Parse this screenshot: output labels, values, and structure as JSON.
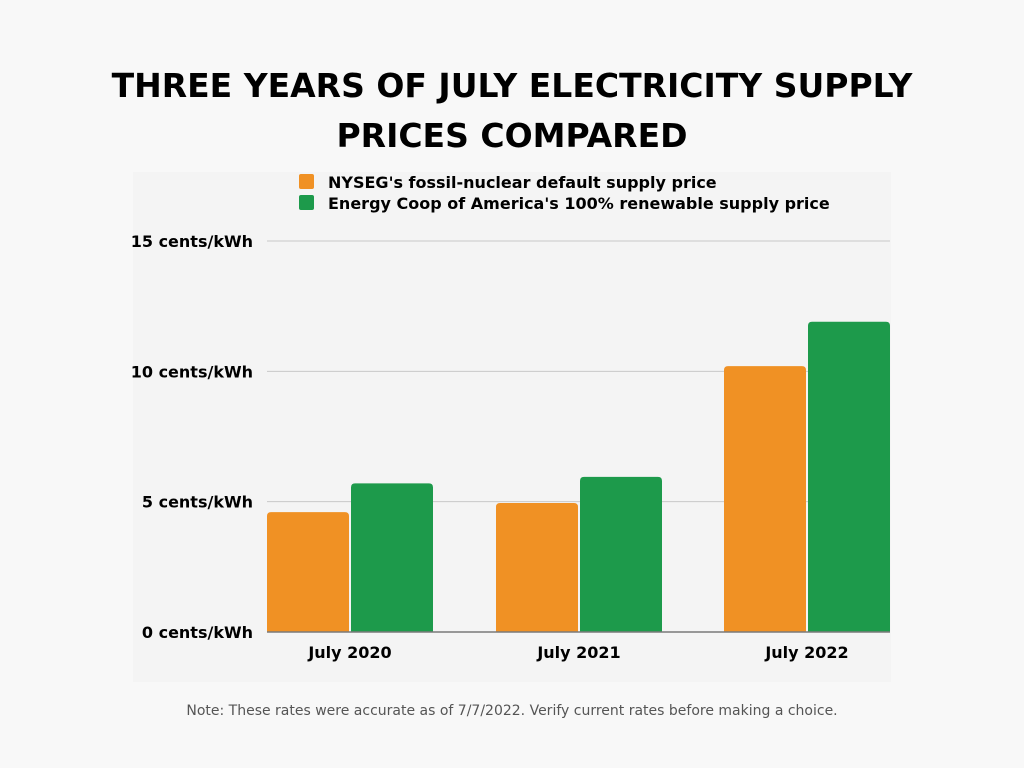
{
  "chart_data": {
    "type": "bar",
    "title": "THREE YEARS OF JULY ELECTRICITY SUPPLY PRICES COMPARED",
    "title_lines": [
      "THREE YEARS OF JULY ELECTRICITY SUPPLY",
      "PRICES COMPARED"
    ],
    "categories": [
      "July 2020",
      "July 2021",
      "July 2022"
    ],
    "series": [
      {
        "name": "NYSEG's fossil-nuclear default supply price",
        "color": "#f09124",
        "values": [
          4.6,
          4.95,
          10.2
        ]
      },
      {
        "name": "Energy Coop of America's 100% renewable supply price",
        "color": "#1d9a4b",
        "values": [
          5.7,
          5.95,
          11.9
        ]
      }
    ],
    "xlabel": "",
    "ylabel": "",
    "ylim": [
      0,
      15
    ],
    "yticks": [
      {
        "value": 0,
        "label": "0 cents/kWh"
      },
      {
        "value": 5,
        "label": "5 cents/kWh"
      },
      {
        "value": 10,
        "label": "10 cents/kWh"
      },
      {
        "value": 15,
        "label": "15 cents/kWh"
      }
    ],
    "grid": true,
    "legend_position": "top-left"
  },
  "note": "Note: These rates were accurate as of 7/7/2022. Verify current rates before making a choice."
}
